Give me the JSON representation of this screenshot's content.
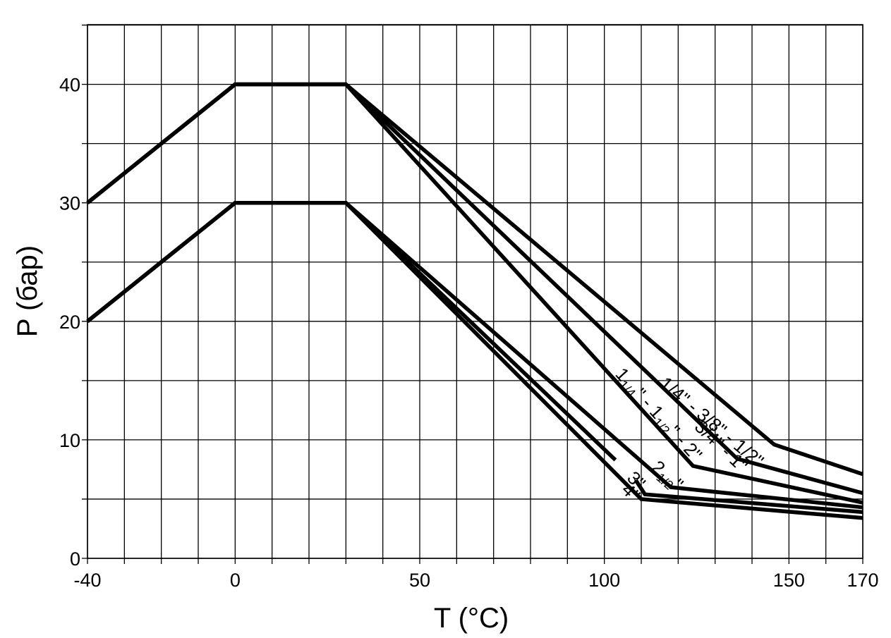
{
  "chart_data": {
    "type": "line",
    "xlabel": "T (°C)",
    "ylabel": "P (бар)",
    "x_ticks": [
      -40,
      0,
      50,
      100,
      150,
      170
    ],
    "y_ticks": [
      0,
      10,
      20,
      30,
      40
    ],
    "xlim": [
      -40,
      170
    ],
    "ylim": [
      0,
      40
    ],
    "x_grid_step": 10,
    "y_grid_step": 5,
    "grid": true,
    "series": [
      {
        "name": "1/4\" - 3/8\" - 1/2\"",
        "label_parts": [
          {
            "t": "1/4\" - 3/8\" - 1/2\""
          }
        ],
        "label_anchor": [
          128,
          11.1
        ],
        "label_angle_data": [
          30,
          40,
          146,
          9.6
        ],
        "points": [
          [
            -40,
            30
          ],
          [
            0,
            40
          ],
          [
            30,
            40
          ],
          [
            146,
            9.6
          ],
          [
            170,
            7.1
          ]
        ]
      },
      {
        "name": "3/4\" - 1\"",
        "label_parts": [
          {
            "t": "3/4\" - 1\""
          }
        ],
        "label_anchor": [
          130.5,
          9.1
        ],
        "label_angle_data": [
          30,
          40,
          136,
          8.4
        ],
        "points": [
          [
            -40,
            30
          ],
          [
            0,
            40
          ],
          [
            30,
            40
          ],
          [
            136,
            8.4
          ],
          [
            170,
            5.5
          ]
        ]
      },
      {
        "name": "1 1/4\" - 1 1/2\" - 2\"",
        "label_parts": [
          {
            "t": "1"
          },
          {
            "t": "1/4",
            "sub": true
          },
          {
            "t": "\" - 1"
          },
          {
            "t": "1/2",
            "sub": true
          },
          {
            "t": "\" - 2\""
          }
        ],
        "label_anchor": [
          113.5,
          11.8
        ],
        "label_angle_data": [
          30,
          40,
          124,
          7.8
        ],
        "points": [
          [
            -40,
            30
          ],
          [
            0,
            40
          ],
          [
            30,
            40
          ],
          [
            124,
            7.8
          ],
          [
            170,
            4.7
          ]
        ]
      },
      {
        "name": "2 1/2\"",
        "label_parts": [
          {
            "t": "2"
          },
          {
            "t": "1/2",
            "sub": true
          },
          {
            "t": "\""
          }
        ],
        "label_anchor": [
          116,
          6.6
        ],
        "label_angle_data": [
          30,
          30,
          118,
          6.0
        ],
        "points": [
          [
            -40,
            20
          ],
          [
            0,
            30
          ],
          [
            30,
            30
          ],
          [
            118,
            6.0
          ],
          [
            170,
            4.3
          ]
        ]
      },
      {
        "name": "3\"",
        "label_parts": [
          {
            "t": "3\""
          }
        ],
        "label_anchor": [
          107.5,
          6.2
        ],
        "label_angle_data": [
          30,
          30,
          103,
          8.3
        ],
        "points": [
          [
            -40,
            20
          ],
          [
            0,
            30
          ],
          [
            30,
            30
          ],
          [
            103,
            8.3
          ]
        ]
      },
      {
        "name": "3\" (segment)",
        "points": [
          [
            108.5,
            6.6
          ],
          [
            111,
            5.4
          ],
          [
            170,
            3.9
          ]
        ]
      },
      {
        "name": "4\"",
        "label_parts": [
          {
            "t": "4\""
          }
        ],
        "label_anchor": [
          106,
          5.2
        ],
        "label_angle_data": [
          30,
          30,
          110,
          5.0
        ],
        "points": [
          [
            -40,
            20
          ],
          [
            0,
            30
          ],
          [
            30,
            30
          ],
          [
            110,
            5.0
          ],
          [
            170,
            3.4
          ]
        ]
      }
    ]
  }
}
